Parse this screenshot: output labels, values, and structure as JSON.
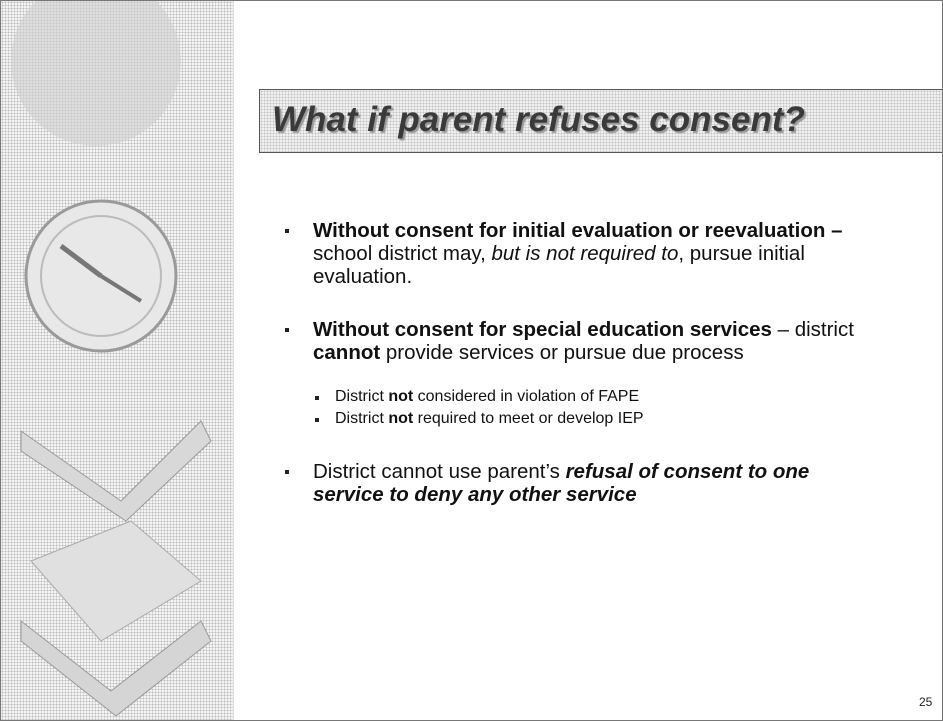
{
  "slide": {
    "title": "What if parent refuses consent?",
    "bullets": [
      {
        "runs": [
          {
            "text": "Without consent  for initial evaluation or reevaluation – ",
            "style": "bold"
          },
          {
            "text": "school district may, ",
            "style": "normal"
          },
          {
            "text": "but is not required to",
            "style": "italic"
          },
          {
            "text": ", pursue initial evaluation.",
            "style": "normal"
          }
        ]
      },
      {
        "runs": [
          {
            "text": "Without consent for special education services ",
            "style": "bold"
          },
          {
            "text": " – district ",
            "style": "normal"
          },
          {
            "text": "cannot",
            "style": "bold"
          },
          {
            "text": " provide services or pursue due process",
            "style": "normal"
          }
        ],
        "sub_bullets": [
          {
            "runs": [
              {
                "text": "District ",
                "style": "normal"
              },
              {
                "text": "not",
                "style": "bold"
              },
              {
                "text": " considered in violation of FAPE",
                "style": "normal"
              }
            ]
          },
          {
            "runs": [
              {
                "text": "District ",
                "style": "normal"
              },
              {
                "text": "not",
                "style": "bold"
              },
              {
                "text": " required to meet or develop IEP",
                "style": "normal"
              }
            ]
          }
        ]
      },
      {
        "runs": [
          {
            "text": "District cannot use parent’s ",
            "style": "normal"
          },
          {
            "text": "refusal of consent to one service to deny any other service",
            "style": "bold-italic"
          }
        ]
      }
    ],
    "page_number": "25"
  }
}
